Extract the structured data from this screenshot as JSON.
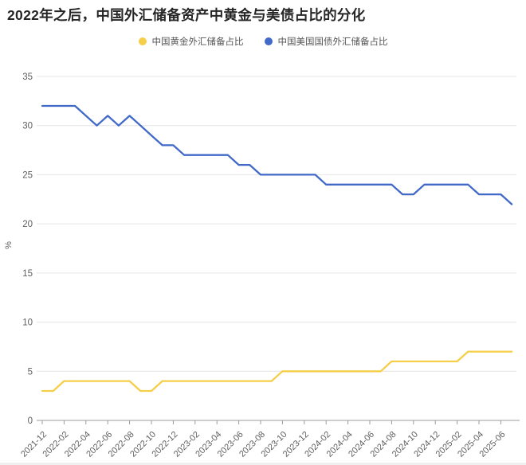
{
  "title": "2022年之后，中国外汇储备资产中黄金与美债占比的分化",
  "colors": {
    "gold_series": "#F5CE4A",
    "treasury_series": "#4169C8",
    "gridline": "#E4E4E4",
    "axis": "#9B9B9B",
    "tick_text": "#5f5f5f",
    "title_text": "#262626"
  },
  "chart_data": {
    "type": "line",
    "title": "2022年之后，中国外汇储备资产中黄金与美债占比的分化",
    "xlabel": "",
    "ylabel": "%",
    "ylim": [
      0,
      35
    ],
    "y_ticks": [
      0,
      5,
      10,
      15,
      20,
      25,
      30,
      35
    ],
    "grid": "horizontal",
    "legend_position": "top-center",
    "x_label_every": 2,
    "x": [
      "2021-12",
      "2022-01",
      "2022-02",
      "2022-03",
      "2022-04",
      "2022-05",
      "2022-06",
      "2022-07",
      "2022-08",
      "2022-09",
      "2022-10",
      "2022-11",
      "2022-12",
      "2023-01",
      "2023-02",
      "2023-03",
      "2023-04",
      "2023-05",
      "2023-06",
      "2023-07",
      "2023-08",
      "2023-09",
      "2023-10",
      "2023-11",
      "2023-12",
      "2024-01",
      "2024-02",
      "2024-03",
      "2024-04",
      "2024-05",
      "2024-06",
      "2024-07",
      "2024-08",
      "2024-09",
      "2024-10",
      "2024-11",
      "2024-12",
      "2025-01",
      "2025-02",
      "2025-03",
      "2025-04",
      "2025-05",
      "2025-06",
      "2025-07"
    ],
    "series": [
      {
        "name": "中国黄金外汇储备占比",
        "color": "#F5CE4A",
        "values": [
          3,
          3,
          4,
          4,
          4,
          4,
          4,
          4,
          4,
          3,
          3,
          4,
          4,
          4,
          4,
          4,
          4,
          4,
          4,
          4,
          4,
          4,
          5,
          5,
          5,
          5,
          5,
          5,
          5,
          5,
          5,
          5,
          6,
          6,
          6,
          6,
          6,
          6,
          6,
          7,
          7,
          7,
          7,
          7
        ]
      },
      {
        "name": "中国美国国债外汇储备占比",
        "color": "#4169C8",
        "values": [
          32,
          32,
          32,
          32,
          31,
          30,
          31,
          30,
          31,
          30,
          29,
          28,
          28,
          27,
          27,
          27,
          27,
          27,
          26,
          26,
          25,
          25,
          25,
          25,
          25,
          25,
          24,
          24,
          24,
          24,
          24,
          24,
          24,
          23,
          23,
          24,
          24,
          24,
          24,
          24,
          23,
          23,
          23,
          22
        ]
      }
    ]
  }
}
